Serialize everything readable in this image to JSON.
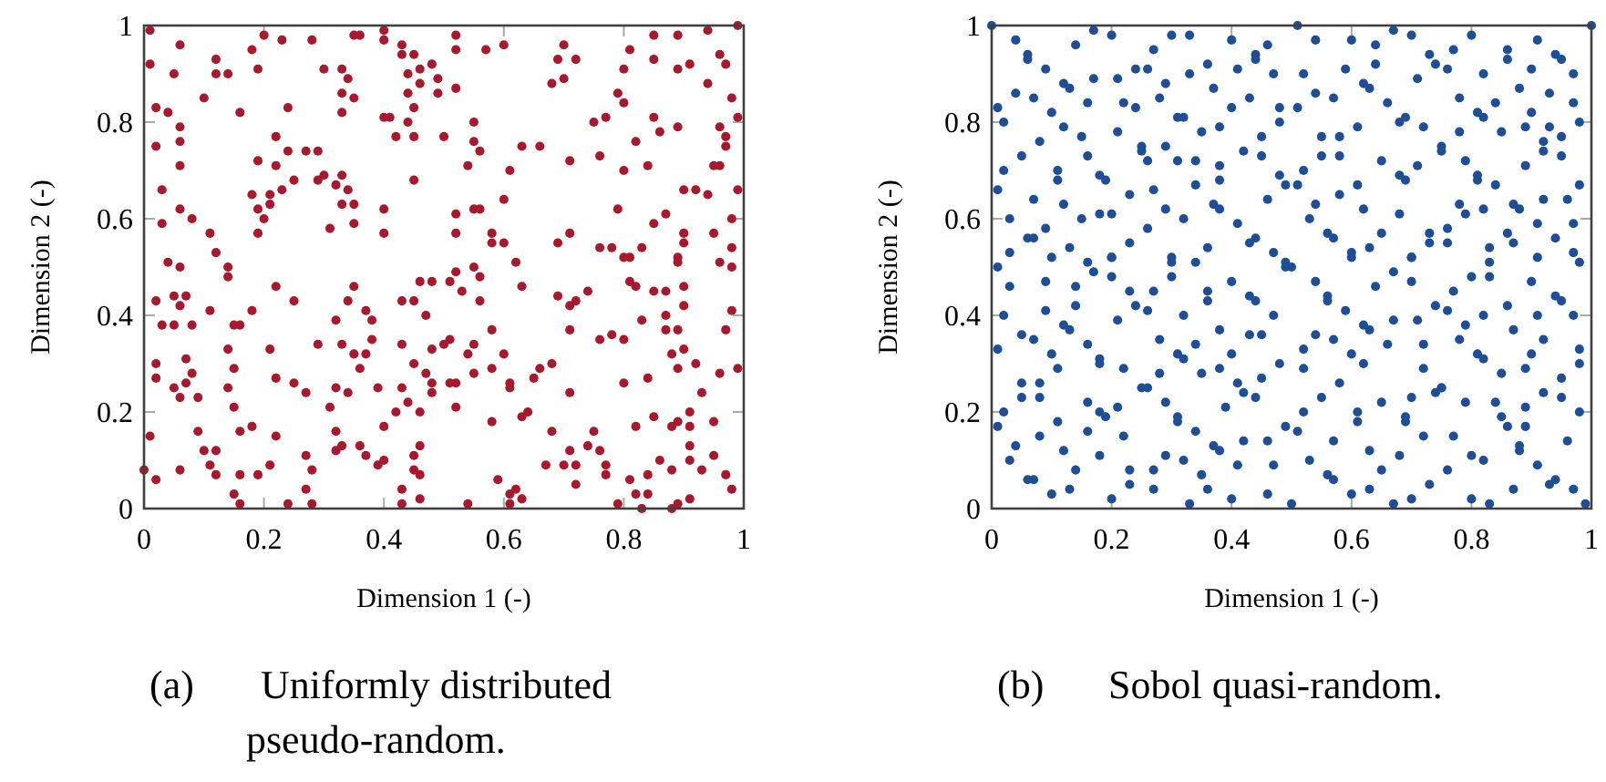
{
  "chart_data": [
    {
      "type": "scatter",
      "xlabel": "Dimension 1 (-)",
      "ylabel": "Dimension 2 (-)",
      "annotations": [
        "(a) Uniformly distributed pseudo-random."
      ],
      "color": "#a8192e",
      "marker": "circle",
      "xlim": [
        0,
        1
      ],
      "ylim": [
        0,
        1
      ],
      "xticks": [
        0,
        0.2,
        0.4,
        0.6,
        0.8,
        1
      ],
      "yticks": [
        0,
        0.2,
        0.4,
        0.6,
        0.8,
        1
      ],
      "x": [
        0.01,
        0.06,
        0.01,
        0.05,
        0.02,
        0.04,
        0.06,
        0.06,
        0.02,
        0.06,
        0.03,
        0.06,
        0.08,
        0.03,
        0.1,
        0.12,
        0.12,
        0.14,
        0.16,
        0.18,
        0.2,
        0.23,
        0.19,
        0.22,
        0.24,
        0.24,
        0.27,
        0.29,
        0.19,
        0.22,
        0.25,
        0.23,
        0.21,
        0.21,
        0.18,
        0.19,
        0.2,
        0.19,
        0.11,
        0.12,
        0.29,
        0.3,
        0.32,
        0.33,
        0.34,
        0.35,
        0.33,
        0.35,
        0.31,
        0.28,
        0.3,
        0.33,
        0.34,
        0.33,
        0.35,
        0.33,
        0.35,
        0.36,
        0.4,
        0.4,
        0.4,
        0.41,
        0.42,
        0.45,
        0.44,
        0.43,
        0.45,
        0.43,
        0.46,
        0.44,
        0.48,
        0.46,
        0.44,
        0.45,
        0.49,
        0.49,
        0.52,
        0.52,
        0.52,
        0.45,
        0.4,
        0.4,
        0.5,
        0.55,
        0.55,
        0.56,
        0.54,
        0.52,
        0.55,
        0.56,
        0.52,
        0.58,
        0.58,
        0.6,
        0.6,
        0.61,
        0.63,
        0.66,
        0.57,
        0.6,
        0.68,
        0.69,
        0.7,
        0.7,
        0.72,
        0.71,
        0.71,
        0.69,
        0.76,
        0.75,
        0.77,
        0.79,
        0.8,
        0.8,
        0.81,
        0.82,
        0.8,
        0.79,
        0.76,
        0.78,
        0.81,
        0.83,
        0.85,
        0.85,
        0.89,
        0.89,
        0.91,
        0.85,
        0.86,
        0.89,
        0.84,
        0.85,
        0.87,
        0.9,
        0.92,
        0.94,
        0.9,
        0.9,
        0.89,
        0.94,
        0.94,
        0.99,
        0.96,
        0.97,
        0.98,
        0.99,
        0.96,
        0.97,
        0.97,
        0.95,
        0.96,
        0.99,
        0.98,
        0.95,
        0.98,
        0.04,
        0.06,
        0.14,
        0.14,
        0.02,
        0.05,
        0.06,
        0.07,
        0.03,
        0.05,
        0.08,
        0.11,
        0.15,
        0.16,
        0.18,
        0.22,
        0.25,
        0.02,
        0.02,
        0.07,
        0.08,
        0.07,
        0.05,
        0.06,
        0.09,
        0.14,
        0.15,
        0.14,
        0.15,
        0.21,
        0.22,
        0.25,
        0.27,
        0.29,
        0.01,
        0.0,
        0.02,
        0.06,
        0.09,
        0.1,
        0.11,
        0.12,
        0.12,
        0.16,
        0.18,
        0.16,
        0.15,
        0.16,
        0.19,
        0.21,
        0.22,
        0.27,
        0.28,
        0.27,
        0.24,
        0.28,
        0.31,
        0.32,
        0.33,
        0.32,
        0.32,
        0.33,
        0.35,
        0.36,
        0.32,
        0.34,
        0.34,
        0.35,
        0.37,
        0.38,
        0.38,
        0.37,
        0.36,
        0.37,
        0.39,
        0.4,
        0.39,
        0.4,
        0.42,
        0.43,
        0.44,
        0.43,
        0.43,
        0.45,
        0.46,
        0.47,
        0.45,
        0.47,
        0.48,
        0.48,
        0.46,
        0.45,
        0.46,
        0.45,
        0.46,
        0.43,
        0.46,
        0.43,
        0.48,
        0.5,
        0.51,
        0.51,
        0.52,
        0.48,
        0.51,
        0.52,
        0.55,
        0.56,
        0.53,
        0.56,
        0.52,
        0.54,
        0.55,
        0.55,
        0.58,
        0.58,
        0.58,
        0.59,
        0.54,
        0.61,
        0.61,
        0.62,
        0.63,
        0.61,
        0.61,
        0.6,
        0.62,
        0.63,
        0.63,
        0.64,
        0.65,
        0.66,
        0.68,
        0.68,
        0.67,
        0.69,
        0.71,
        0.72,
        0.71,
        0.71,
        0.7,
        0.71,
        0.72,
        0.72,
        0.74,
        0.76,
        0.75,
        0.77,
        0.77,
        0.74,
        0.76,
        0.78,
        0.8,
        0.8,
        0.8,
        0.81,
        0.82,
        0.83,
        0.85,
        0.87,
        0.9,
        0.9,
        0.87,
        0.87,
        0.89,
        0.88,
        0.9,
        0.89,
        0.84,
        0.93,
        0.92,
        0.89,
        0.96,
        0.98,
        0.98,
        0.97,
        0.99,
        0.96,
        0.85,
        0.82,
        0.88,
        0.89,
        0.91,
        0.95,
        0.91,
        0.91,
        0.91,
        0.93,
        0.95,
        0.97,
        0.98,
        0.86,
        0.88,
        0.81,
        0.84,
        0.82,
        0.84,
        0.79,
        0.83,
        0.88,
        0.89,
        0.91
      ],
      "values": [
        0.99,
        0.96,
        0.92,
        0.9,
        0.83,
        0.82,
        0.79,
        0.76,
        0.75,
        0.71,
        0.66,
        0.62,
        0.6,
        0.59,
        0.85,
        0.93,
        0.9,
        0.9,
        0.82,
        0.95,
        0.98,
        0.97,
        0.91,
        0.77,
        0.83,
        0.74,
        0.74,
        0.74,
        0.72,
        0.71,
        0.68,
        0.66,
        0.65,
        0.63,
        0.65,
        0.62,
        0.6,
        0.57,
        0.57,
        0.53,
        0.68,
        0.69,
        0.67,
        0.69,
        0.66,
        0.63,
        0.63,
        0.59,
        0.58,
        0.97,
        0.91,
        0.91,
        0.89,
        0.86,
        0.85,
        0.82,
        0.98,
        0.98,
        0.99,
        0.97,
        0.81,
        0.81,
        0.77,
        0.77,
        0.8,
        0.96,
        0.94,
        0.94,
        0.91,
        0.9,
        0.92,
        0.88,
        0.86,
        0.83,
        0.89,
        0.86,
        0.87,
        0.98,
        0.95,
        0.68,
        0.62,
        0.57,
        0.77,
        0.8,
        0.76,
        0.74,
        0.71,
        0.61,
        0.62,
        0.62,
        0.57,
        0.57,
        0.55,
        0.55,
        0.64,
        0.7,
        0.75,
        0.75,
        0.95,
        0.96,
        0.88,
        0.93,
        0.96,
        0.89,
        0.93,
        0.72,
        0.57,
        0.55,
        0.73,
        0.8,
        0.81,
        0.86,
        0.84,
        0.91,
        0.95,
        0.76,
        0.7,
        0.62,
        0.54,
        0.54,
        0.52,
        0.54,
        0.98,
        0.93,
        0.98,
        0.91,
        0.92,
        0.81,
        0.78,
        0.79,
        0.71,
        0.59,
        0.61,
        0.66,
        0.66,
        0.65,
        0.57,
        0.55,
        0.52,
        0.88,
        0.99,
        1.0,
        0.94,
        0.92,
        0.85,
        0.81,
        0.79,
        0.77,
        0.75,
        0.71,
        0.71,
        0.66,
        0.6,
        0.57,
        0.54,
        0.51,
        0.5,
        0.5,
        0.48,
        0.43,
        0.44,
        0.42,
        0.44,
        0.38,
        0.38,
        0.38,
        0.41,
        0.38,
        0.38,
        0.41,
        0.46,
        0.43,
        0.3,
        0.27,
        0.31,
        0.28,
        0.26,
        0.25,
        0.23,
        0.23,
        0.33,
        0.29,
        0.25,
        0.21,
        0.33,
        0.27,
        0.26,
        0.24,
        0.34,
        0.15,
        0.08,
        0.06,
        0.08,
        0.16,
        0.12,
        0.09,
        0.12,
        0.07,
        0.16,
        0.17,
        0.07,
        0.03,
        0.01,
        0.07,
        0.09,
        0.15,
        0.11,
        0.08,
        0.04,
        0.01,
        0.01,
        0.21,
        0.16,
        0.13,
        0.12,
        0.39,
        0.34,
        0.32,
        0.29,
        0.25,
        0.24,
        0.43,
        0.46,
        0.41,
        0.39,
        0.35,
        0.32,
        0.13,
        0.11,
        0.09,
        0.1,
        0.25,
        0.17,
        0.2,
        0.25,
        0.22,
        0.34,
        0.43,
        0.43,
        0.47,
        0.4,
        0.3,
        0.28,
        0.26,
        0.24,
        0.2,
        0.11,
        0.13,
        0.08,
        0.07,
        0.04,
        0.02,
        0.01,
        0.33,
        0.34,
        0.35,
        0.26,
        0.26,
        0.47,
        0.47,
        0.49,
        0.5,
        0.48,
        0.45,
        0.43,
        0.21,
        0.32,
        0.28,
        0.34,
        0.37,
        0.29,
        0.18,
        0.06,
        0.01,
        0.01,
        0.03,
        0.04,
        0.02,
        0.26,
        0.25,
        0.32,
        0.51,
        0.46,
        0.19,
        0.2,
        0.27,
        0.29,
        0.3,
        0.16,
        0.09,
        0.44,
        0.42,
        0.43,
        0.37,
        0.24,
        0.09,
        0.12,
        0.09,
        0.05,
        0.13,
        0.12,
        0.16,
        0.09,
        0.07,
        0.45,
        0.35,
        0.36,
        0.35,
        0.26,
        0.52,
        0.47,
        0.46,
        0.39,
        0.45,
        0.45,
        0.46,
        0.42,
        0.4,
        0.37,
        0.37,
        0.32,
        0.33,
        0.29,
        0.27,
        0.24,
        0.3,
        0.51,
        0.51,
        0.5,
        0.41,
        0.37,
        0.29,
        0.28,
        0.19,
        0.17,
        0.17,
        0.18,
        0.2,
        0.18,
        0.17,
        0.13,
        0.1,
        0.08,
        0.11,
        0.07,
        0.04,
        0.1,
        0.08,
        0.06,
        0.07,
        0.03,
        0.03,
        0.01,
        0.0,
        0.0,
        0.01,
        0.02
      ]
    },
    {
      "type": "scatter",
      "xlabel": "Dimension 1 (-)",
      "ylabel": "Dimension 2 (-)",
      "annotations": [
        "(b) Sobol quasi-random."
      ],
      "color": "#1d4e96",
      "marker": "circle",
      "xlim": [
        0,
        1
      ],
      "ylim": [
        0,
        1
      ],
      "xticks": [
        0,
        0.2,
        0.4,
        0.6,
        0.8,
        1
      ],
      "yticks": [
        0,
        0.2,
        0.4,
        0.6,
        0.8,
        1
      ],
      "x": [
        0.0,
        0.04,
        0.06,
        0.06,
        0.09,
        0.01,
        0.02,
        0.04,
        0.07,
        0.08,
        0.02,
        0.05,
        0.01,
        0.03,
        0.07,
        0.09,
        0.06,
        0.07,
        0.03,
        0.1,
        0.12,
        0.12,
        0.13,
        0.14,
        0.17,
        0.2,
        0.17,
        0.16,
        0.15,
        0.16,
        0.11,
        0.11,
        0.18,
        0.19,
        0.12,
        0.15,
        0.18,
        0.2,
        0.13,
        0.1,
        0.21,
        0.22,
        0.21,
        0.24,
        0.26,
        0.27,
        0.25,
        0.25,
        0.24,
        0.23,
        0.23,
        0.2,
        0.26,
        0.27,
        0.26,
        0.3,
        0.33,
        0.29,
        0.28,
        0.31,
        0.32,
        0.33,
        0.36,
        0.37,
        0.35,
        0.29,
        0.31,
        0.34,
        0.29,
        0.32,
        0.34,
        0.37,
        0.38,
        0.36,
        0.3,
        0.4,
        0.41,
        0.4,
        0.38,
        0.38,
        0.38,
        0.42,
        0.45,
        0.45,
        0.43,
        0.44,
        0.44,
        0.46,
        0.47,
        0.48,
        0.48,
        0.51,
        0.51,
        0.52,
        0.54,
        0.54,
        0.55,
        0.55,
        0.58,
        0.58,
        0.48,
        0.49,
        0.51,
        0.52,
        0.46,
        0.41,
        0.44,
        0.43,
        0.47,
        0.49,
        0.53,
        0.54,
        0.56,
        0.57,
        0.57,
        0.59,
        0.6,
        0.62,
        0.63,
        0.61,
        0.58,
        0.61,
        0.62,
        0.6,
        0.63,
        0.64,
        0.64,
        0.67,
        0.7,
        0.66,
        0.68,
        0.69,
        0.65,
        0.68,
        0.69,
        0.71,
        0.65,
        0.68,
        0.7,
        0.71,
        0.72,
        0.73,
        0.74,
        0.76,
        0.77,
        0.75,
        0.75,
        0.73,
        0.76,
        0.73,
        0.76,
        0.78,
        0.79,
        0.78,
        0.78,
        0.8,
        0.82,
        0.84,
        0.81,
        0.82,
        0.81,
        0.81,
        0.79,
        0.82,
        0.84,
        0.83,
        0.85,
        0.86,
        0.86,
        0.88,
        0.86,
        0.87,
        0.87,
        0.88,
        0.89,
        0.89,
        0.9,
        0.91,
        0.9,
        0.92,
        0.92,
        0.94,
        0.95,
        0.93,
        0.93,
        0.95,
        0.95,
        0.92,
        0.96,
        0.91,
        0.97,
        0.97,
        0.97,
        0.98,
        0.98,
        0.97,
        1.0,
        0.94,
        0.01,
        0.03,
        0.02,
        0.01,
        0.05,
        0.05,
        0.05,
        0.02,
        0.01,
        0.04,
        0.03,
        0.06,
        0.07,
        0.07,
        0.08,
        0.08,
        0.08,
        0.1,
        0.09,
        0.09,
        0.1,
        0.11,
        0.11,
        0.12,
        0.13,
        0.14,
        0.12,
        0.13,
        0.14,
        0.14,
        0.16,
        0.17,
        0.16,
        0.16,
        0.16,
        0.18,
        0.18,
        0.18,
        0.19,
        0.18,
        0.2,
        0.2,
        0.2,
        0.21,
        0.21,
        0.22,
        0.22,
        0.23,
        0.23,
        0.23,
        0.24,
        0.26,
        0.25,
        0.26,
        0.27,
        0.27,
        0.27,
        0.28,
        0.28,
        0.29,
        0.29,
        0.3,
        0.3,
        0.31,
        0.32,
        0.31,
        0.31,
        0.32,
        0.32,
        0.34,
        0.34,
        0.35,
        0.34,
        0.33,
        0.36,
        0.36,
        0.35,
        0.36,
        0.38,
        0.37,
        0.38,
        0.38,
        0.39,
        0.4,
        0.4,
        0.4,
        0.41,
        0.42,
        0.41,
        0.43,
        0.42,
        0.43,
        0.44,
        0.44,
        0.45,
        0.45,
        0.46,
        0.46,
        0.47,
        0.47,
        0.48,
        0.49,
        0.49,
        0.5,
        0.5,
        0.51,
        0.52,
        0.52,
        0.52,
        0.53,
        0.54,
        0.54,
        0.55,
        0.56,
        0.56,
        0.56,
        0.57,
        0.57,
        0.58,
        0.57,
        0.59,
        0.6,
        0.6,
        0.61,
        0.61,
        0.6,
        0.62,
        0.62,
        0.63,
        0.63,
        0.64,
        0.63,
        0.65,
        0.65,
        0.66,
        0.67,
        0.67,
        0.67,
        0.69,
        0.69,
        0.68,
        0.7,
        0.7,
        0.7,
        0.7,
        0.71,
        0.72,
        0.72,
        0.72,
        0.73,
        0.74,
        0.75,
        0.75,
        0.74,
        0.76,
        0.77,
        0.76,
        0.78,
        0.79,
        0.79,
        0.77,
        0.8,
        0.8,
        0.8,
        0.81,
        0.82,
        0.82,
        0.83,
        0.83,
        0.82,
        0.83,
        0.84,
        0.85,
        0.85,
        0.86,
        0.86,
        0.87,
        0.87,
        0.88,
        0.88,
        0.89,
        0.89,
        0.89,
        0.9,
        0.9,
        0.91,
        0.91,
        0.91,
        0.92,
        0.92,
        0.93,
        0.94,
        0.94,
        0.95,
        0.95,
        0.95,
        0.96,
        0.97,
        0.97,
        0.98,
        0.98,
        0.98,
        0.98,
        0.99
      ],
      "values": [
        1.0,
        0.97,
        0.93,
        0.94,
        0.91,
        0.83,
        0.8,
        0.86,
        0.85,
        0.76,
        0.7,
        0.73,
        0.66,
        0.6,
        0.64,
        0.58,
        0.56,
        0.56,
        0.53,
        0.82,
        0.79,
        0.88,
        0.87,
        0.96,
        0.99,
        0.98,
        0.89,
        0.84,
        0.77,
        0.73,
        0.7,
        0.68,
        0.69,
        0.68,
        0.63,
        0.6,
        0.61,
        0.61,
        0.54,
        0.52,
        0.89,
        0.84,
        0.78,
        0.91,
        0.91,
        0.95,
        0.74,
        0.75,
        0.83,
        0.65,
        0.55,
        0.52,
        0.72,
        0.66,
        0.58,
        0.98,
        0.98,
        0.88,
        0.85,
        0.81,
        0.81,
        0.9,
        0.92,
        0.87,
        0.78,
        0.75,
        0.72,
        0.72,
        0.62,
        0.6,
        0.67,
        0.63,
        0.62,
        0.54,
        0.52,
        0.97,
        0.91,
        0.83,
        0.79,
        0.71,
        0.68,
        0.74,
        0.73,
        0.77,
        0.85,
        0.94,
        0.93,
        0.96,
        0.9,
        0.83,
        0.8,
        0.83,
        1.0,
        0.9,
        0.97,
        0.86,
        0.77,
        0.73,
        0.73,
        0.77,
        0.69,
        0.67,
        0.67,
        0.7,
        0.64,
        0.59,
        0.56,
        0.55,
        0.53,
        0.51,
        0.6,
        0.63,
        0.57,
        0.56,
        0.85,
        0.91,
        0.97,
        0.88,
        0.87,
        0.79,
        0.65,
        0.67,
        0.62,
        0.53,
        0.54,
        0.96,
        0.92,
        0.99,
        0.98,
        0.84,
        0.8,
        0.81,
        0.72,
        0.69,
        0.68,
        0.71,
        0.57,
        0.61,
        0.52,
        0.89,
        0.79,
        0.94,
        0.92,
        0.91,
        0.95,
        0.75,
        0.74,
        0.57,
        0.58,
        0.55,
        0.55,
        0.63,
        0.72,
        0.85,
        0.78,
        0.98,
        0.9,
        0.84,
        0.82,
        0.81,
        0.68,
        0.69,
        0.61,
        0.62,
        0.67,
        0.54,
        0.78,
        0.95,
        0.93,
        0.87,
        0.57,
        0.55,
        0.63,
        0.62,
        0.79,
        0.71,
        0.82,
        0.97,
        0.91,
        0.76,
        0.74,
        0.94,
        0.93,
        0.86,
        0.79,
        0.73,
        0.77,
        0.64,
        0.64,
        0.59,
        0.59,
        0.9,
        0.84,
        0.8,
        0.67,
        0.53,
        1.0,
        0.56,
        0.5,
        0.46,
        0.4,
        0.33,
        0.36,
        0.26,
        0.23,
        0.2,
        0.17,
        0.13,
        0.1,
        0.06,
        0.06,
        0.35,
        0.23,
        0.26,
        0.15,
        0.03,
        0.47,
        0.41,
        0.32,
        0.29,
        0.18,
        0.12,
        0.04,
        0.08,
        0.38,
        0.37,
        0.42,
        0.46,
        0.51,
        0.49,
        0.22,
        0.16,
        0.34,
        0.3,
        0.31,
        0.2,
        0.19,
        0.11,
        0.02,
        0.48,
        0.52,
        0.39,
        0.21,
        0.29,
        0.15,
        0.45,
        0.08,
        0.05,
        0.42,
        0.41,
        0.25,
        0.25,
        0.08,
        0.04,
        0.45,
        0.35,
        0.28,
        0.22,
        0.11,
        0.51,
        0.48,
        0.32,
        0.31,
        0.19,
        0.18,
        0.4,
        0.1,
        0.51,
        0.34,
        0.28,
        0.16,
        0.01,
        0.45,
        0.43,
        0.07,
        0.04,
        0.37,
        0.13,
        0.12,
        0.29,
        0.21,
        0.32,
        0.47,
        0.02,
        0.26,
        0.24,
        0.09,
        0.36,
        0.14,
        0.44,
        0.43,
        0.23,
        0.27,
        0.36,
        0.03,
        0.14,
        0.09,
        0.4,
        0.3,
        0.17,
        0.5,
        0.5,
        0.01,
        0.16,
        0.33,
        0.29,
        0.2,
        0.1,
        0.47,
        0.36,
        0.23,
        0.43,
        0.44,
        0.07,
        0.06,
        0.14,
        0.26,
        0.35,
        0.41,
        0.52,
        0.32,
        0.2,
        0.18,
        0.03,
        0.3,
        0.38,
        0.37,
        0.12,
        0.46,
        0.04,
        0.08,
        0.22,
        0.34,
        0.01,
        0.49,
        0.39,
        0.19,
        0.18,
        0.11,
        0.47,
        0.52,
        0.23,
        0.02,
        0.39,
        0.29,
        0.34,
        0.15,
        0.05,
        0.42,
        0.25,
        0.25,
        0.24,
        0.41,
        0.45,
        0.08,
        0.35,
        0.38,
        0.22,
        0.15,
        0.11,
        0.02,
        0.48,
        0.32,
        0.31,
        0.1,
        0.48,
        0.51,
        0.4,
        0.01,
        0.22,
        0.19,
        0.28,
        0.42,
        0.17,
        0.37,
        0.04,
        0.13,
        0.12,
        0.29,
        0.21,
        0.17,
        0.32,
        0.47,
        0.4,
        0.52,
        0.09,
        0.24,
        0.35,
        0.05,
        0.06,
        0.44,
        0.43,
        0.23,
        0.27,
        0.14,
        0.04,
        0.4,
        0.51,
        0.33,
        0.3,
        0.2,
        0.01
      ]
    }
  ]
}
